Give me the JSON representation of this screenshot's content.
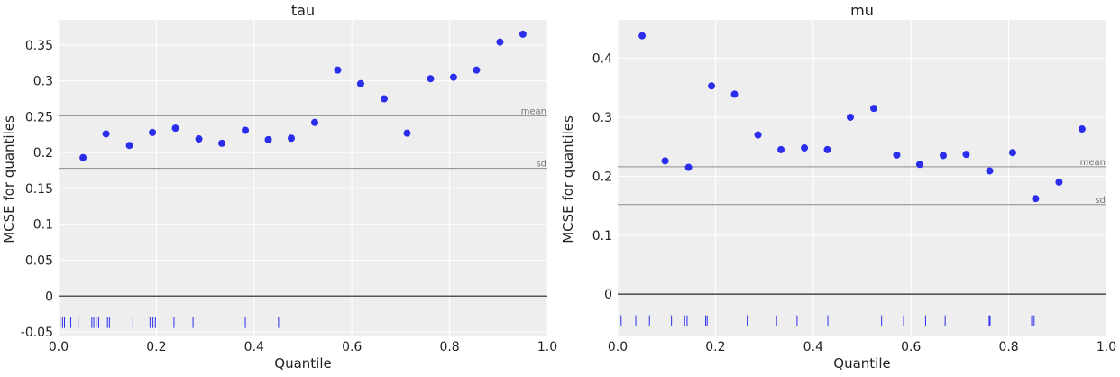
{
  "chart_data": [
    {
      "type": "scatter",
      "title": "tau",
      "xlabel": "Quantile",
      "ylabel": "MCSE for quantiles",
      "xlim": [
        0.0,
        1.0
      ],
      "ylim": [
        -0.055,
        0.385
      ],
      "xticks": [
        0.0,
        0.2,
        0.4,
        0.6,
        0.8,
        1.0
      ],
      "xtick_labels": [
        "0.0",
        "0.2",
        "0.4",
        "0.6",
        "0.8",
        "1.0"
      ],
      "yticks": [
        -0.05,
        0,
        0.05,
        0.1,
        0.15,
        0.2,
        0.25,
        0.3,
        0.35
      ],
      "ytick_labels": [
        "-0.05",
        "0",
        "0.05",
        "0.1",
        "0.15",
        "0.2",
        "0.25",
        "0.3",
        "0.35"
      ],
      "grid": true,
      "point_color": "#2a2eec",
      "x": [
        0.05,
        0.097,
        0.145,
        0.192,
        0.239,
        0.287,
        0.334,
        0.382,
        0.429,
        0.476,
        0.524,
        0.571,
        0.618,
        0.666,
        0.713,
        0.761,
        0.808,
        0.855,
        0.903,
        0.95
      ],
      "y": [
        0.193,
        0.226,
        0.21,
        0.228,
        0.234,
        0.219,
        0.213,
        0.231,
        0.218,
        0.22,
        0.242,
        0.315,
        0.296,
        0.275,
        0.227,
        0.303,
        0.305,
        0.315,
        0.354,
        0.365
      ],
      "reference_lines": [
        {
          "label": "mean",
          "value": 0.251
        },
        {
          "label": "sd",
          "value": 0.178
        }
      ],
      "rug_y": -0.037,
      "rug": [
        0.003,
        0.008,
        0.012,
        0.025,
        0.04,
        0.068,
        0.072,
        0.077,
        0.082,
        0.1,
        0.104,
        0.152,
        0.187,
        0.193,
        0.198,
        0.236,
        0.275,
        0.382,
        0.45
      ]
    },
    {
      "type": "scatter",
      "title": "mu",
      "xlabel": "Quantile",
      "ylabel": "MCSE for quantiles",
      "xlim": [
        0.0,
        1.0
      ],
      "ylim": [
        -0.07,
        0.465
      ],
      "xticks": [
        0.0,
        0.2,
        0.4,
        0.6,
        0.8,
        1.0
      ],
      "xtick_labels": [
        "0.0",
        "0.2",
        "0.4",
        "0.6",
        "0.8",
        "1.0"
      ],
      "yticks": [
        0,
        0.1,
        0.2,
        0.3,
        0.4
      ],
      "ytick_labels": [
        "0",
        "0.1",
        "0.2",
        "0.3",
        "0.4"
      ],
      "grid": true,
      "point_color": "#2a2eec",
      "x": [
        0.05,
        0.097,
        0.145,
        0.192,
        0.239,
        0.287,
        0.334,
        0.382,
        0.429,
        0.476,
        0.524,
        0.571,
        0.618,
        0.666,
        0.713,
        0.761,
        0.808,
        0.855,
        0.903,
        0.95
      ],
      "y": [
        0.438,
        0.226,
        0.215,
        0.353,
        0.339,
        0.27,
        0.245,
        0.248,
        0.245,
        0.3,
        0.315,
        0.236,
        0.22,
        0.235,
        0.237,
        0.209,
        0.24,
        0.162,
        0.19,
        0.28
      ],
      "reference_lines": [
        {
          "label": "mean",
          "value": 0.216
        },
        {
          "label": "sd",
          "value": 0.152
        }
      ],
      "rug_y": -0.045,
      "rug": [
        0.007,
        0.037,
        0.065,
        0.11,
        0.137,
        0.142,
        0.18,
        0.183,
        0.265,
        0.325,
        0.367,
        0.43,
        0.54,
        0.585,
        0.63,
        0.67,
        0.76,
        0.762,
        0.847,
        0.852
      ]
    }
  ]
}
